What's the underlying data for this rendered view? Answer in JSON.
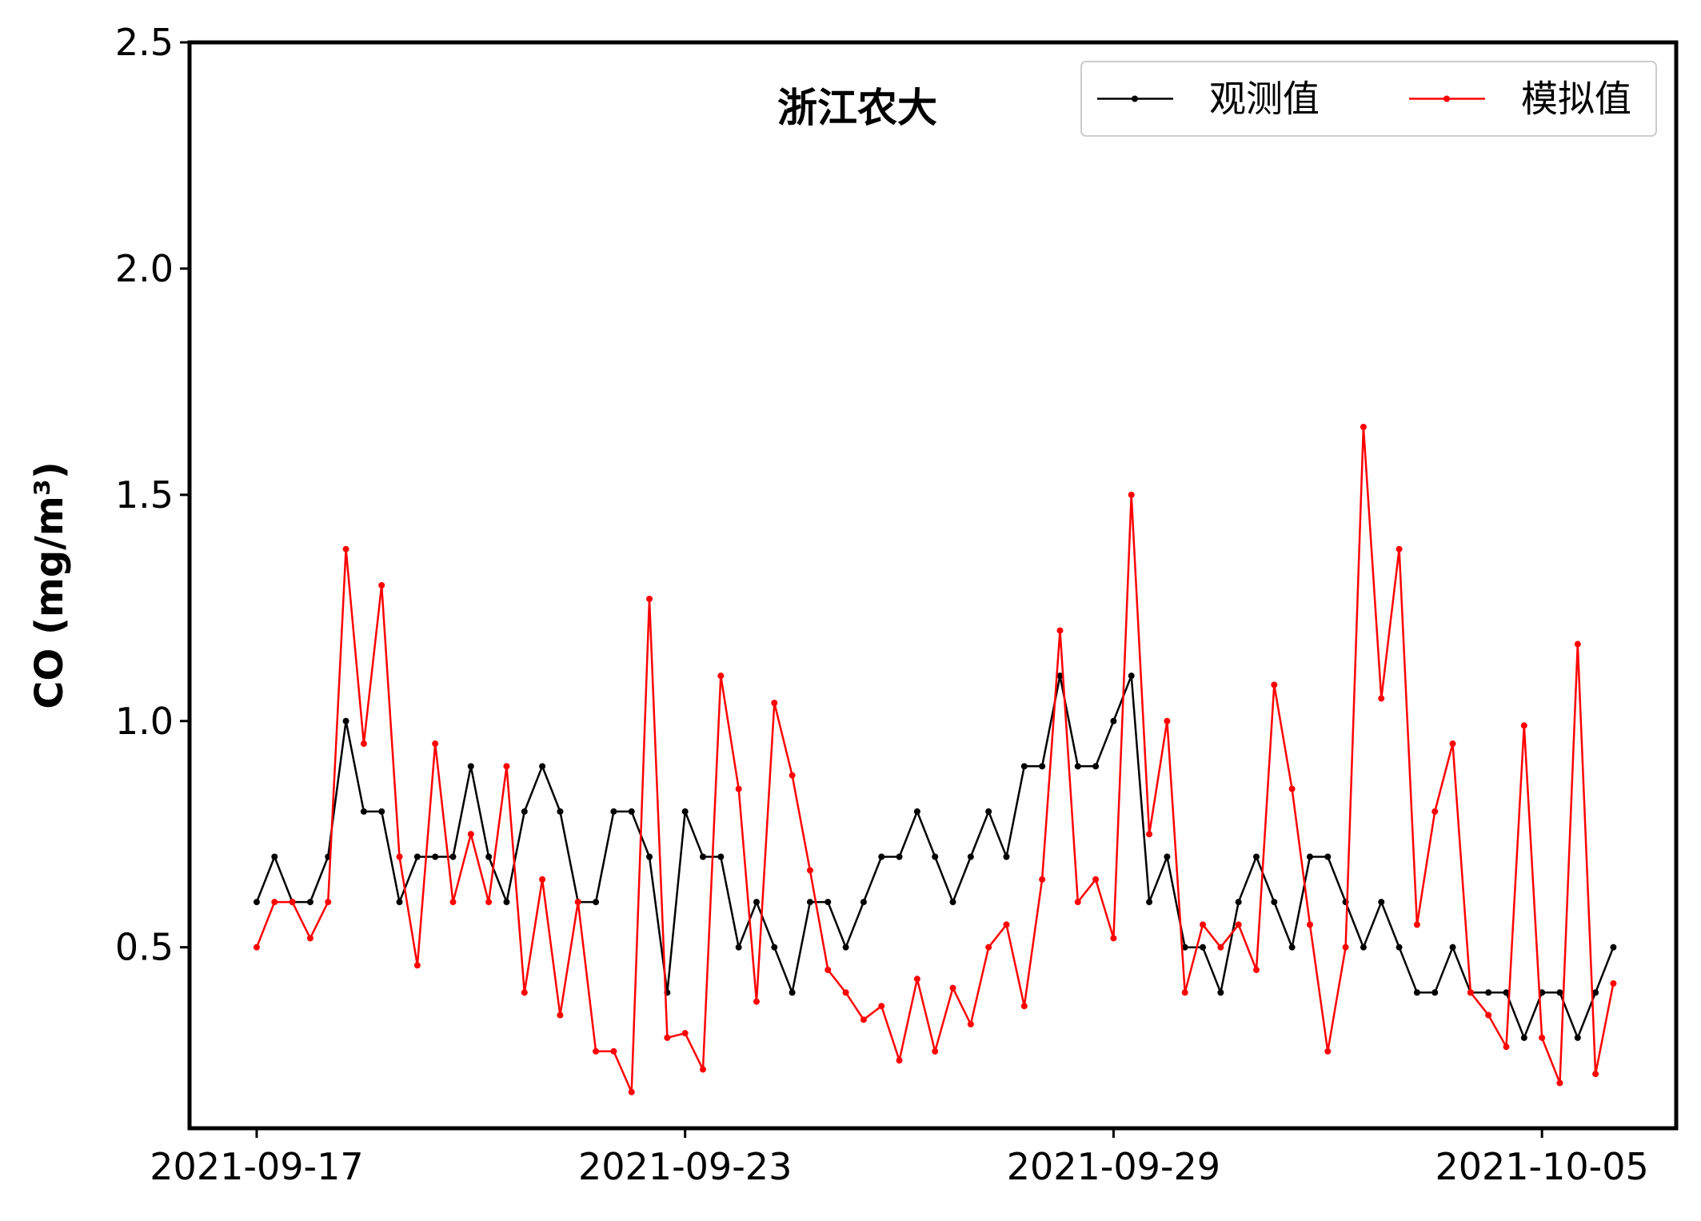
{
  "chart_data": {
    "type": "line",
    "title": "浙江农大",
    "ylabel": "CO (mg/m³)",
    "x": [
      "2021-09-17 00:00",
      "2021-09-17 06:00",
      "2021-09-17 12:00",
      "2021-09-17 18:00",
      "2021-09-18 00:00",
      "2021-09-18 06:00",
      "2021-09-18 12:00",
      "2021-09-18 18:00",
      "2021-09-19 00:00",
      "2021-09-19 06:00",
      "2021-09-19 12:00",
      "2021-09-19 18:00",
      "2021-09-20 00:00",
      "2021-09-20 06:00",
      "2021-09-20 12:00",
      "2021-09-20 18:00",
      "2021-09-21 00:00",
      "2021-09-21 06:00",
      "2021-09-21 12:00",
      "2021-09-21 18:00",
      "2021-09-22 00:00",
      "2021-09-22 06:00",
      "2021-09-22 12:00",
      "2021-09-22 18:00",
      "2021-09-23 00:00",
      "2021-09-23 06:00",
      "2021-09-23 12:00",
      "2021-09-23 18:00",
      "2021-09-24 00:00",
      "2021-09-24 06:00",
      "2021-09-24 12:00",
      "2021-09-24 18:00",
      "2021-09-25 00:00",
      "2021-09-25 06:00",
      "2021-09-25 12:00",
      "2021-09-25 18:00",
      "2021-09-26 00:00",
      "2021-09-26 06:00",
      "2021-09-26 12:00",
      "2021-09-26 18:00",
      "2021-09-27 00:00",
      "2021-09-27 06:00",
      "2021-09-27 12:00",
      "2021-09-27 18:00",
      "2021-09-28 00:00",
      "2021-09-28 06:00",
      "2021-09-28 12:00",
      "2021-09-28 18:00",
      "2021-09-29 00:00",
      "2021-09-29 06:00",
      "2021-09-29 12:00",
      "2021-09-29 18:00",
      "2021-09-30 00:00",
      "2021-09-30 06:00",
      "2021-09-30 12:00",
      "2021-09-30 18:00",
      "2021-10-01 00:00",
      "2021-10-01 06:00",
      "2021-10-01 12:00",
      "2021-10-01 18:00",
      "2021-10-02 00:00",
      "2021-10-02 06:00",
      "2021-10-02 12:00",
      "2021-10-02 18:00",
      "2021-10-03 00:00",
      "2021-10-03 06:00",
      "2021-10-03 12:00",
      "2021-10-03 18:00",
      "2021-10-04 00:00",
      "2021-10-04 06:00",
      "2021-10-04 12:00",
      "2021-10-04 18:00",
      "2021-10-05 00:00",
      "2021-10-05 06:00",
      "2021-10-05 12:00",
      "2021-10-05 18:00",
      "2021-10-06 00:00"
    ],
    "series": [
      {
        "name": "观测值",
        "color": "#000000",
        "values": [
          0.6,
          0.7,
          0.6,
          0.6,
          0.7,
          1.0,
          0.8,
          0.8,
          0.6,
          0.7,
          0.7,
          0.7,
          0.9,
          0.7,
          0.6,
          0.8,
          0.9,
          0.8,
          0.6,
          0.6,
          0.8,
          0.8,
          0.7,
          0.4,
          0.8,
          0.7,
          0.7,
          0.5,
          0.6,
          0.5,
          0.4,
          0.6,
          0.6,
          0.5,
          0.6,
          0.7,
          0.7,
          0.8,
          0.7,
          0.6,
          0.7,
          0.8,
          0.7,
          0.9,
          0.9,
          1.1,
          0.9,
          0.9,
          1.0,
          1.1,
          0.6,
          0.7,
          0.5,
          0.5,
          0.4,
          0.6,
          0.7,
          0.6,
          0.5,
          0.7,
          0.7,
          0.6,
          0.5,
          0.6,
          0.5,
          0.4,
          0.4,
          0.5,
          0.4,
          0.4,
          0.4,
          0.3,
          0.4,
          0.4,
          0.3,
          0.4,
          0.5
        ]
      },
      {
        "name": "模拟值",
        "color": "#ff0000",
        "values": [
          0.5,
          0.6,
          0.6,
          0.52,
          0.6,
          1.38,
          0.95,
          1.3,
          0.7,
          0.46,
          0.95,
          0.6,
          0.75,
          0.6,
          0.9,
          0.4,
          0.65,
          0.35,
          0.6,
          0.27,
          0.27,
          0.18,
          1.27,
          0.3,
          0.31,
          0.23,
          1.1,
          0.85,
          0.38,
          1.04,
          0.88,
          0.67,
          0.45,
          0.4,
          0.34,
          0.37,
          0.25,
          0.43,
          0.27,
          0.41,
          0.33,
          0.5,
          0.55,
          0.37,
          0.65,
          1.2,
          0.6,
          0.65,
          0.52,
          1.5,
          0.75,
          1.0,
          0.4,
          0.55,
          0.5,
          0.55,
          0.45,
          1.08,
          0.85,
          0.55,
          0.27,
          0.5,
          1.65,
          1.05,
          1.38,
          0.55,
          0.8,
          0.95,
          0.4,
          0.35,
          0.28,
          0.99,
          0.3,
          0.2,
          1.17,
          0.22,
          0.42
        ]
      }
    ],
    "xlim": [
      "2021-09-16 01:26",
      "2021-10-06 21:07"
    ],
    "xticks": [
      "2021-09-17",
      "2021-09-23",
      "2021-09-29",
      "2021-10-05"
    ],
    "ylim": [
      0.1,
      2.5
    ],
    "yticks": [
      0.5,
      {
        "value": 1.0,
        "label": "1.0"
      },
      1.5,
      {
        "value": 2.0,
        "label": "2.0"
      },
      2.5
    ],
    "legend": "upper right"
  }
}
